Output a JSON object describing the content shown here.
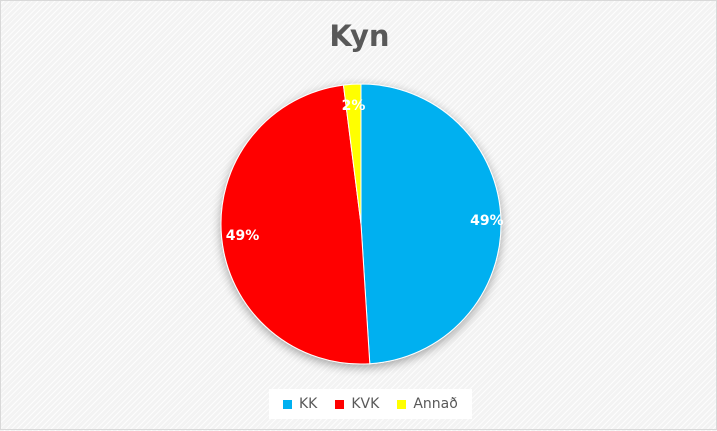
{
  "chart_data": {
    "type": "pie",
    "title": "Kyn",
    "categories": [
      "KK",
      "KVK",
      "Annað"
    ],
    "values": [
      49,
      49,
      2
    ],
    "data_labels": [
      "49%",
      "49%",
      "2%"
    ],
    "colors": [
      "#00b0f0",
      "#ff0000",
      "#ffff00"
    ],
    "legend": "bottom",
    "start_angle": "top",
    "direction": "clockwise"
  }
}
